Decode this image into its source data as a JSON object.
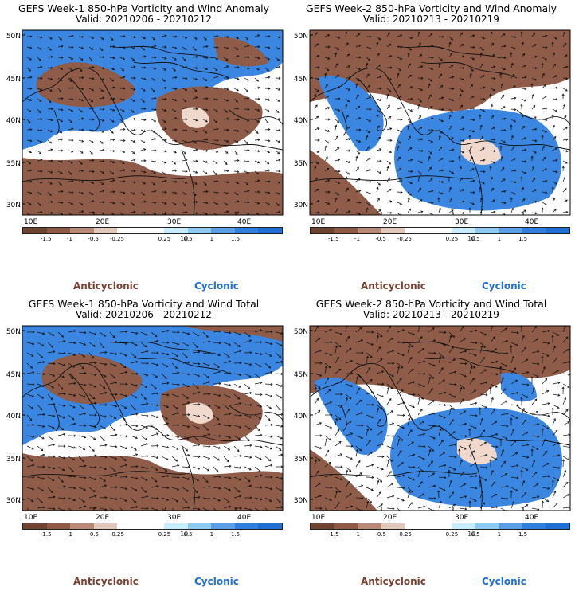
{
  "panels": [
    {
      "title": "GEFS Week-1 850-hPa Vorticity and Wind Anomaly",
      "valid": "Valid: 20210206 - 20210212"
    },
    {
      "title": "GEFS Week-2 850-hPa Vorticity and Wind Anomaly",
      "valid": "Valid: 20210213 - 20210219"
    },
    {
      "title": "GEFS Week-1 850-hPa Vorticity and Wind Total",
      "valid": "Valid: 20210206 - 20210212"
    },
    {
      "title": "GEFS Week-2 850-hPa Vorticity and Wind Total",
      "valid": "Valid: 20210213 - 20210219"
    }
  ],
  "axes": {
    "lat_labels": [
      "50N",
      "45N",
      "40N",
      "35N",
      "30N"
    ],
    "lon_labels": [
      "10E",
      "20E",
      "30E",
      "40E"
    ]
  },
  "colorbar": {
    "labels": [
      "-1.5",
      "-1",
      "-0.5",
      "-0.25",
      "0.25",
      "0.5",
      "1",
      "1.5"
    ],
    "unit": "10",
    "colors": [
      "#6e4430",
      "#8e5a45",
      "#b98977",
      "#e2c8bb",
      "#ffffff",
      "#ffffff",
      "#c7ebff",
      "#8ecbf2",
      "#5a9ee8",
      "#2f7fe0",
      "#1f6fd6"
    ]
  },
  "legend": {
    "anticyclonic": "Anticyclonic",
    "cyclonic": "Cyclonic"
  },
  "colors": {
    "anticyclonic": "#7a4030",
    "cyclonic": "#1f6fd6",
    "blue_fill": "#3a86e0",
    "brown_fill": "#8e5c48",
    "light_fill": "#f0d9cc"
  }
}
